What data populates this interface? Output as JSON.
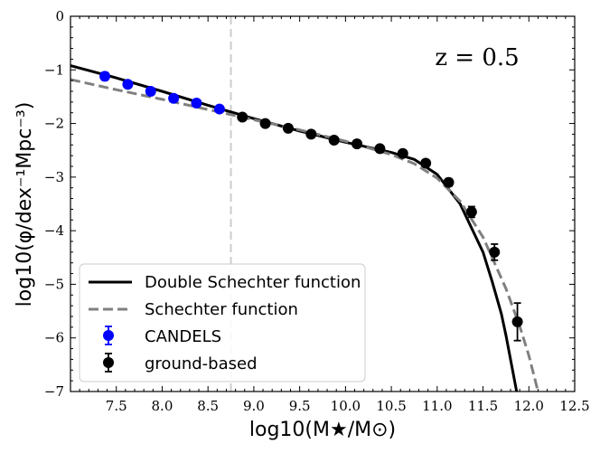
{
  "chart_data": {
    "type": "scatter",
    "title": "",
    "annotation": "z = 0.5",
    "xlabel": "log10(M★/M⊙)",
    "ylabel": "log10(φ/dex⁻¹Mpc⁻³)",
    "xlim": [
      7.0,
      12.5
    ],
    "ylim": [
      -7,
      0
    ],
    "xticks": [
      7.5,
      8.0,
      8.5,
      9.0,
      9.5,
      10.0,
      10.5,
      11.0,
      11.5,
      12.0,
      12.5
    ],
    "xtick_labels": [
      "7.5",
      "8.0",
      "8.5",
      "9.0",
      "9.5",
      "10.0",
      "10.5",
      "11.0",
      "11.5",
      "12.0",
      "12.5"
    ],
    "yticks": [
      0,
      -1,
      -2,
      -3,
      -4,
      -5,
      -6,
      -7
    ],
    "ytick_labels": [
      "0",
      "−1",
      "−2",
      "−3",
      "−4",
      "−5",
      "−6",
      "−7"
    ],
    "vline": {
      "x": 8.75,
      "color": "#cccccc"
    },
    "legend_position": "lower-left",
    "series": [
      {
        "name": "CANDELS",
        "kind": "errorbar",
        "color": "#0000ff",
        "x": [
          7.375,
          7.625,
          7.875,
          8.125,
          8.375,
          8.625
        ],
        "y": [
          -1.12,
          -1.27,
          -1.4,
          -1.53,
          -1.62,
          -1.73
        ],
        "yerr": [
          0.07,
          0.05,
          0.05,
          0.04,
          0.04,
          0.04
        ]
      },
      {
        "name": "ground-based",
        "kind": "errorbar",
        "color": "#000000",
        "x": [
          8.875,
          9.125,
          9.375,
          9.625,
          9.875,
          10.125,
          10.375,
          10.625,
          10.875,
          11.125,
          11.375,
          11.625,
          11.875
        ],
        "y": [
          -1.88,
          -2.0,
          -2.09,
          -2.2,
          -2.31,
          -2.38,
          -2.47,
          -2.56,
          -2.74,
          -3.1,
          -3.65,
          -4.4,
          -5.7
        ],
        "yerr": [
          0.03,
          0.03,
          0.03,
          0.03,
          0.03,
          0.03,
          0.04,
          0.05,
          0.06,
          0.07,
          0.1,
          0.15,
          0.35
        ]
      },
      {
        "name": "Double Schechter function",
        "kind": "line",
        "color": "#000000",
        "dash": "solid",
        "x": [
          7.0,
          7.5,
          8.0,
          8.5,
          9.0,
          9.5,
          10.0,
          10.5,
          10.75,
          11.0,
          11.25,
          11.5,
          11.6,
          11.7,
          11.75,
          11.8,
          11.85,
          11.9
        ],
        "y": [
          -0.92,
          -1.15,
          -1.4,
          -1.66,
          -1.91,
          -2.14,
          -2.35,
          -2.54,
          -2.67,
          -2.95,
          -3.5,
          -4.4,
          -4.95,
          -5.55,
          -5.95,
          -6.4,
          -6.85,
          -7.3
        ]
      },
      {
        "name": "Schechter function",
        "kind": "line",
        "color": "#808080",
        "dash": "dashed",
        "x": [
          7.0,
          7.5,
          8.0,
          8.5,
          9.0,
          9.5,
          10.0,
          10.5,
          10.75,
          11.0,
          11.25,
          11.5,
          11.75,
          11.9,
          12.0,
          12.1
        ],
        "y": [
          -1.18,
          -1.37,
          -1.55,
          -1.74,
          -1.93,
          -2.12,
          -2.33,
          -2.58,
          -2.75,
          -3.02,
          -3.45,
          -4.12,
          -5.08,
          -5.78,
          -6.33,
          -7.0
        ]
      }
    ],
    "legend": [
      {
        "label": "Double Schechter function",
        "series": 2
      },
      {
        "label": "Schechter function",
        "series": 3
      },
      {
        "label": "CANDELS",
        "series": 0
      },
      {
        "label": "ground-based",
        "series": 1
      }
    ]
  }
}
